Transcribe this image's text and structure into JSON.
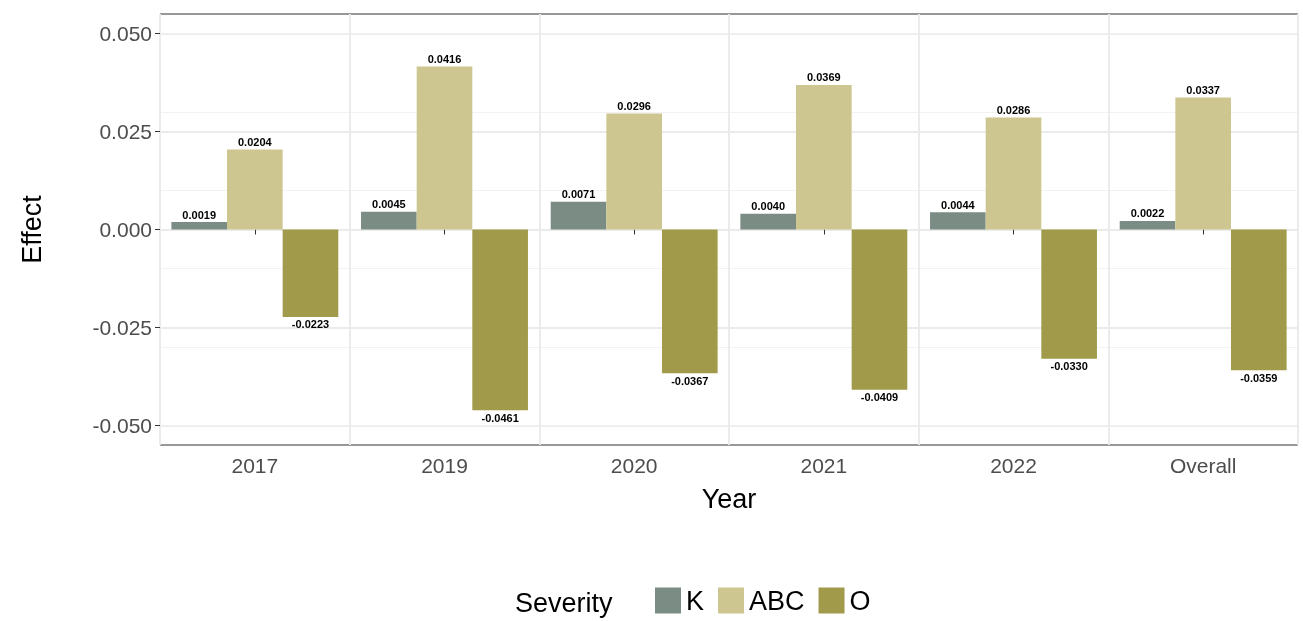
{
  "chart_data": {
    "type": "bar",
    "xlabel": "Year",
    "ylabel": "Effect",
    "legend_title": "Severity",
    "categories": [
      "2017",
      "2019",
      "2020",
      "2021",
      "2022",
      "Overall"
    ],
    "series": [
      {
        "name": "K",
        "color": "#7a8c84",
        "values": [
          0.0019,
          0.0045,
          0.0071,
          0.004,
          0.0044,
          0.0022
        ],
        "value_labels": [
          "0.0019",
          "0.0045",
          "0.0071",
          "0.0040",
          "0.0044",
          "0.0022"
        ]
      },
      {
        "name": "ABC",
        "color": "#cdc690",
        "values": [
          0.0204,
          0.0416,
          0.0296,
          0.0369,
          0.0286,
          0.0337
        ],
        "value_labels": [
          "0.0204",
          "0.0416",
          "0.0296",
          "0.0369",
          "0.0286",
          "0.0337"
        ]
      },
      {
        "name": "O",
        "color": "#a09a4a",
        "values": [
          -0.0223,
          -0.0461,
          -0.0367,
          -0.0409,
          -0.033,
          -0.0359
        ],
        "value_labels": [
          "-0.0223",
          "-0.0461",
          "-0.0367",
          "-0.0409",
          "-0.0330",
          "-0.0359"
        ]
      }
    ],
    "ylim": [
      -0.055,
      0.055
    ],
    "yticks": [
      {
        "value": -0.05,
        "label": "-0.050"
      },
      {
        "value": -0.025,
        "label": "-0.025"
      },
      {
        "value": 0,
        "label": "0.000"
      },
      {
        "value": 0.025,
        "label": "0.025"
      },
      {
        "value": 0.05,
        "label": "0.050"
      }
    ],
    "grid": true,
    "legend": "bottom"
  }
}
